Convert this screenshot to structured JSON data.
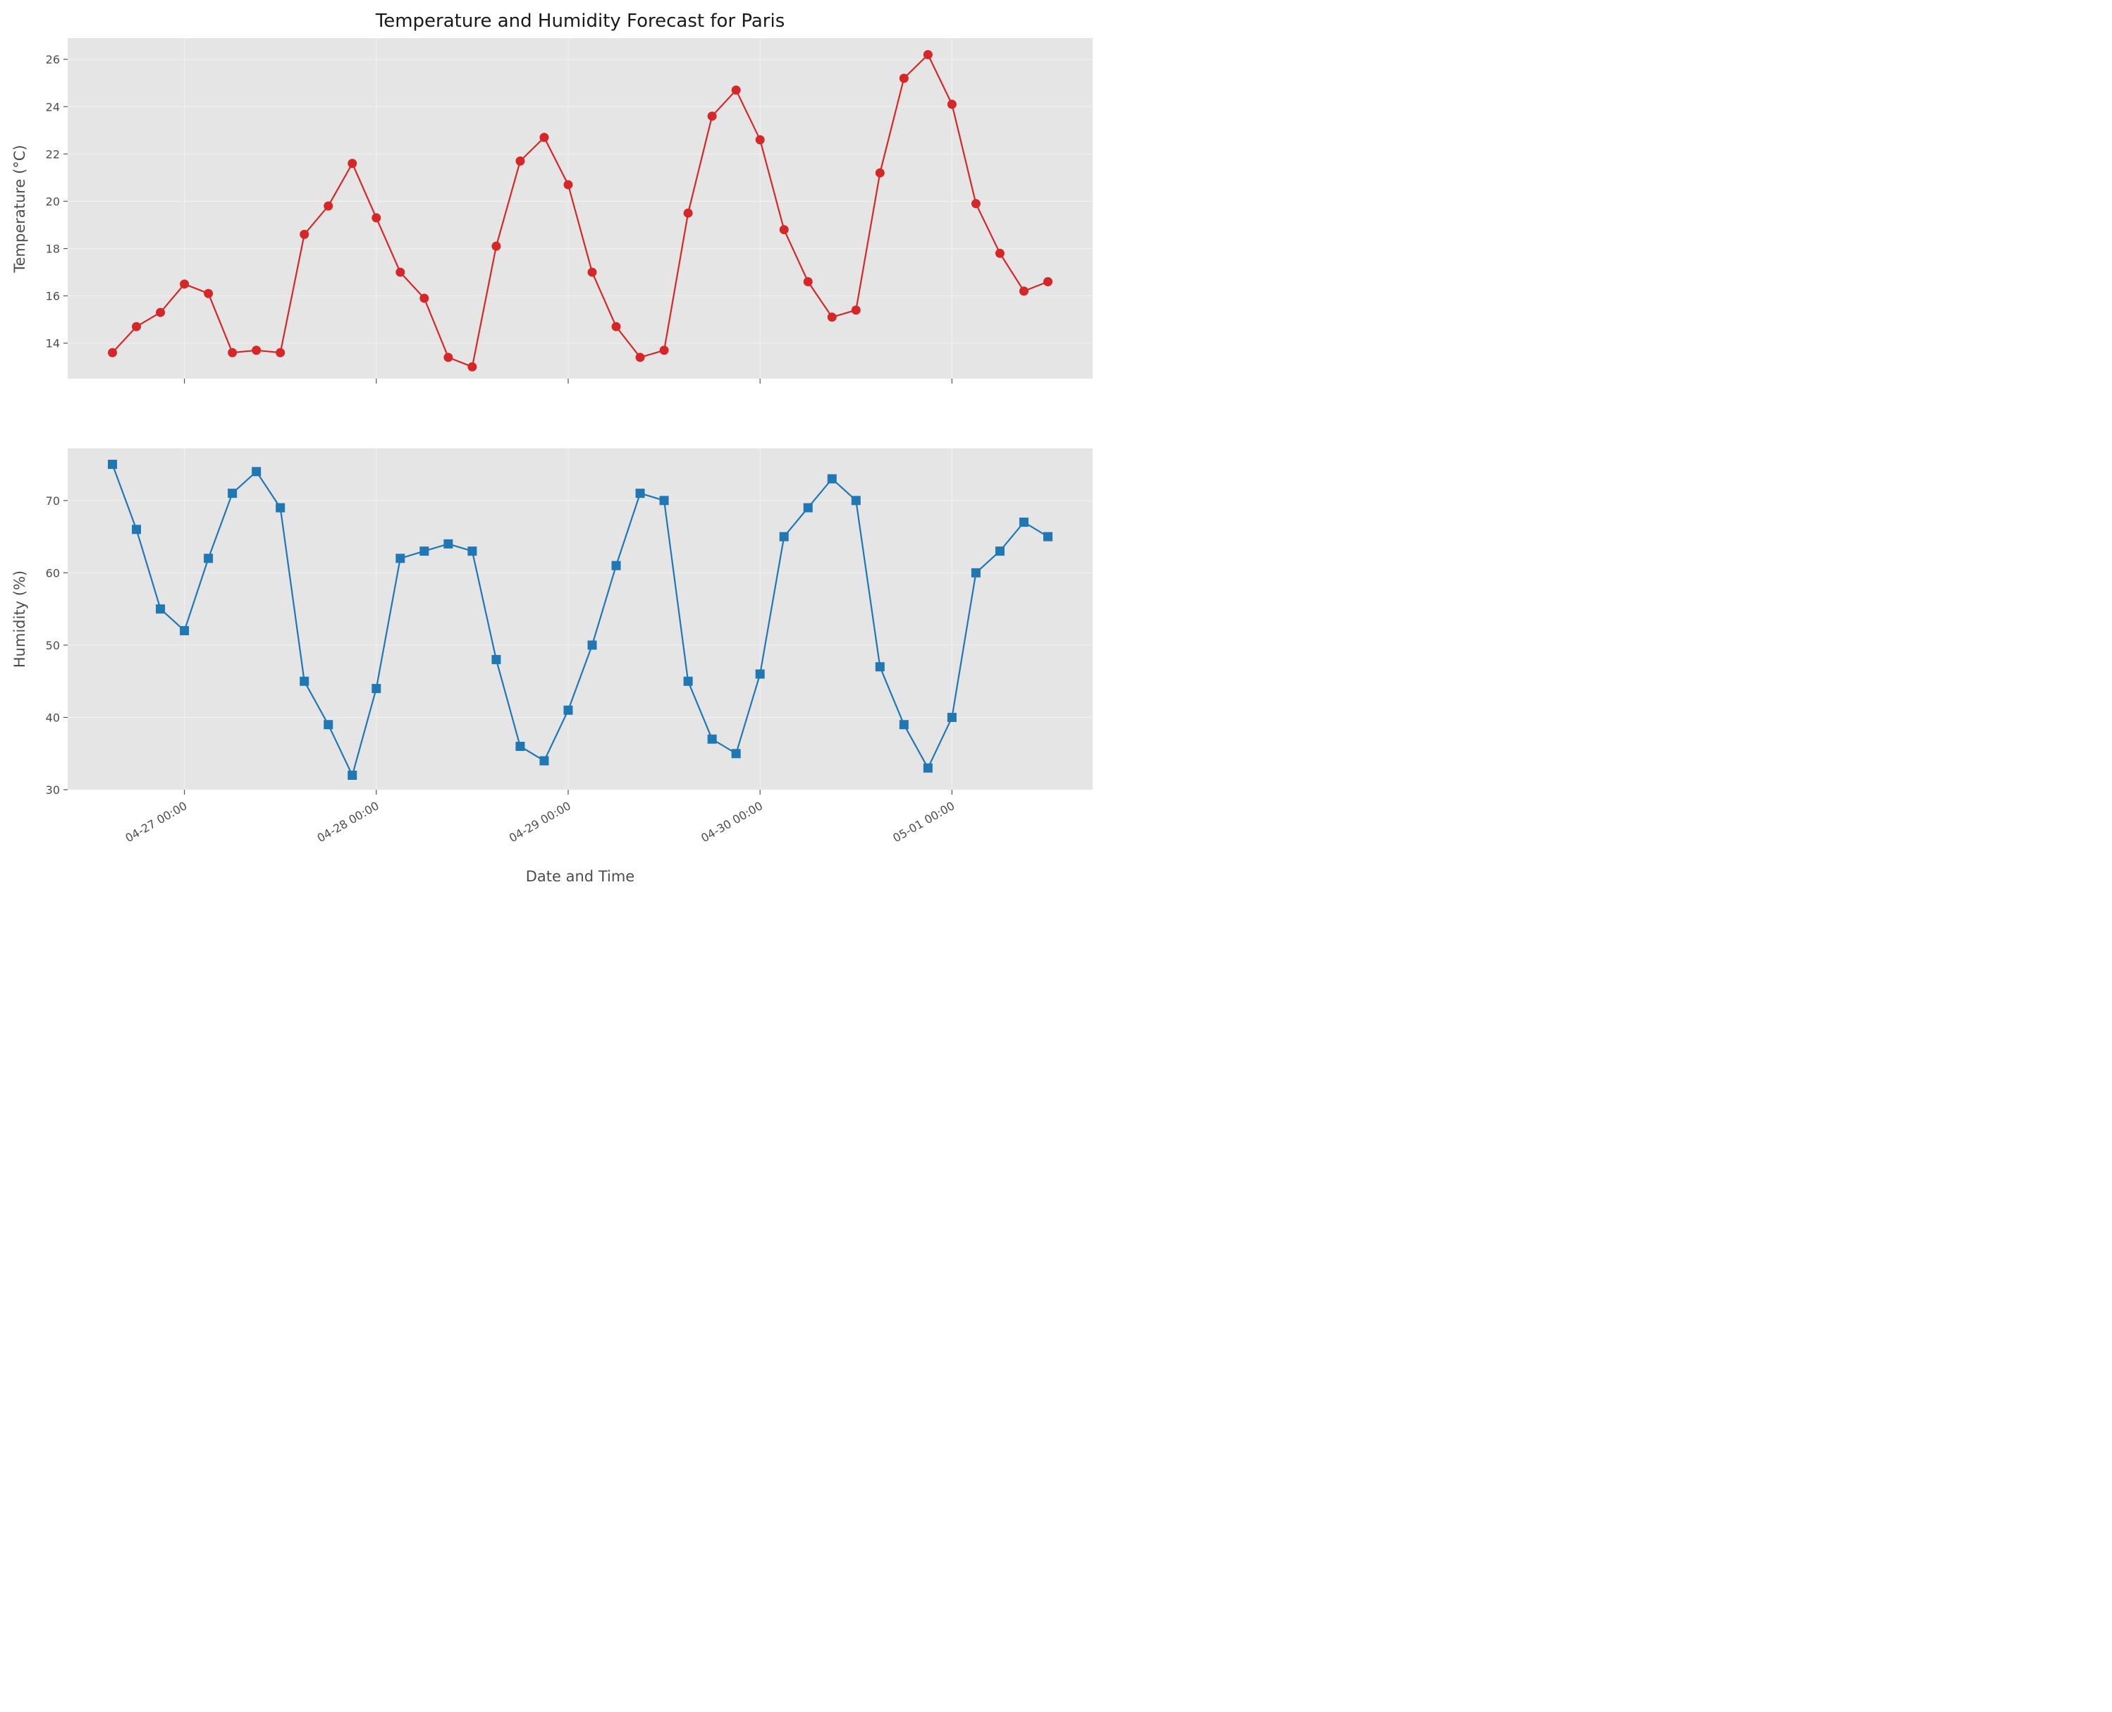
{
  "chart_data": {
    "type": "line",
    "title": "Temperature and Humidity Forecast for Paris",
    "xlabel": "Date and Time",
    "x": [
      "04-26 15:00",
      "04-26 18:00",
      "04-26 21:00",
      "04-27 00:00",
      "04-27 03:00",
      "04-27 06:00",
      "04-27 09:00",
      "04-27 12:00",
      "04-27 15:00",
      "04-27 18:00",
      "04-27 21:00",
      "04-28 00:00",
      "04-28 03:00",
      "04-28 06:00",
      "04-28 09:00",
      "04-28 12:00",
      "04-28 15:00",
      "04-28 18:00",
      "04-28 21:00",
      "04-29 00:00",
      "04-29 03:00",
      "04-29 06:00",
      "04-29 09:00",
      "04-29 12:00",
      "04-29 15:00",
      "04-29 18:00",
      "04-29 21:00",
      "04-30 00:00",
      "04-30 03:00",
      "04-30 06:00",
      "04-30 09:00",
      "04-30 12:00",
      "04-30 15:00",
      "04-30 18:00",
      "04-30 21:00",
      "05-01 00:00",
      "05-01 03:00",
      "05-01 06:00",
      "05-01 09:00",
      "05-01 12:00"
    ],
    "x_ticks": [
      "04-27 00:00",
      "04-28 00:00",
      "04-29 00:00",
      "04-30 00:00",
      "05-01 00:00"
    ],
    "grid": true,
    "subplots": [
      {
        "ylabel": "Temperature (°C)",
        "ylim": [
          12.5,
          26.9
        ],
        "y_ticks": [
          14,
          16,
          18,
          20,
          22,
          24,
          26
        ],
        "series": [
          {
            "color": "#d62728",
            "marker": "circle",
            "values": [
              13.6,
              14.7,
              15.3,
              16.5,
              16.1,
              13.6,
              13.7,
              13.6,
              18.6,
              19.8,
              21.6,
              19.3,
              17.0,
              15.9,
              13.4,
              13.0,
              18.1,
              21.7,
              22.7,
              20.7,
              17.0,
              14.7,
              13.4,
              13.7,
              19.5,
              23.6,
              24.7,
              22.6,
              18.8,
              16.6,
              15.1,
              15.4,
              21.2,
              25.2,
              26.2,
              24.1,
              19.9,
              17.8,
              16.2,
              16.6
            ]
          }
        ]
      },
      {
        "ylabel": "Humidity (%)",
        "ylim": [
          30,
          77.2
        ],
        "y_ticks": [
          30,
          40,
          50,
          60,
          70
        ],
        "series": [
          {
            "color": "#1f77b4",
            "marker": "square",
            "values": [
              75,
              66,
              55,
              52,
              62,
              71,
              74,
              69,
              45,
              39,
              32,
              44,
              62,
              63,
              64,
              63,
              48,
              36,
              34,
              41,
              50,
              61,
              71,
              70,
              45,
              37,
              35,
              46,
              65,
              69,
              73,
              70,
              47,
              39,
              33,
              40,
              60,
              63,
              67,
              65
            ]
          }
        ]
      }
    ]
  }
}
